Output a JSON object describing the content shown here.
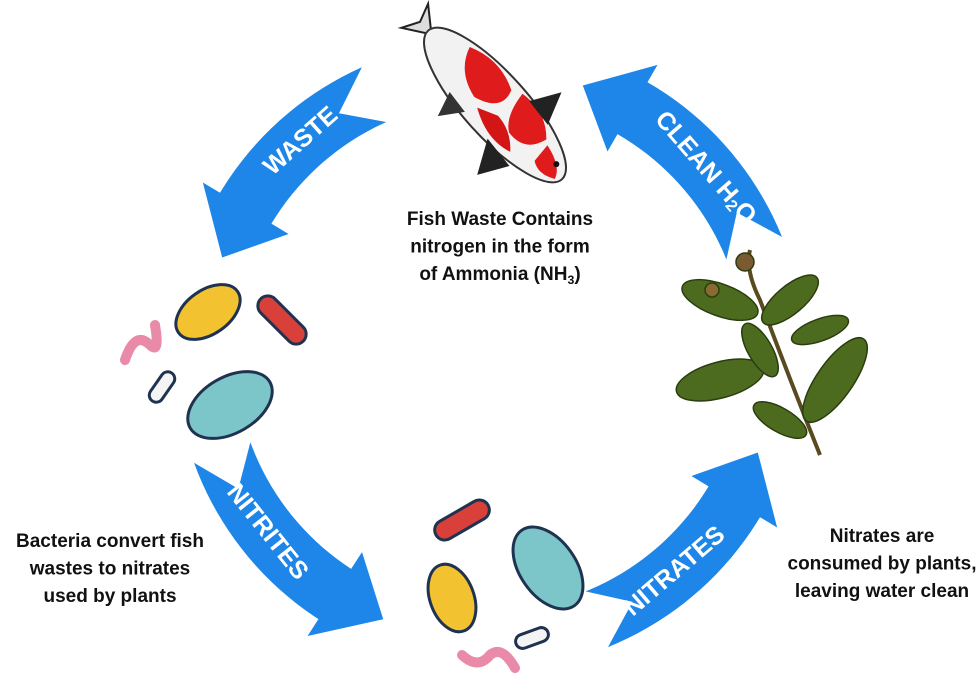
{
  "arrows": [
    {
      "label": [
        [
          "WASTE"
        ]
      ]
    },
    {
      "label": [
        [
          "CLEAN H",
          "2",
          "O"
        ]
      ]
    },
    {
      "label": [
        [
          "NITRATES"
        ]
      ]
    },
    {
      "label": [
        [
          "NITRITES"
        ]
      ]
    }
  ],
  "captions": {
    "fish": {
      "lines": [
        [
          "Fish Waste Contains"
        ],
        [
          "nitrogen in the form"
        ],
        [
          "of Ammonia (NH",
          "3",
          ")"
        ]
      ]
    },
    "bacteria": {
      "lines": [
        [
          "Bacteria convert fish"
        ],
        [
          "wastes to nitrates"
        ],
        [
          "used by plants"
        ]
      ]
    },
    "plants": {
      "lines": [
        [
          "Nitrates are"
        ],
        [
          "consumed by plants,"
        ],
        [
          "leaving water clean"
        ]
      ]
    }
  }
}
